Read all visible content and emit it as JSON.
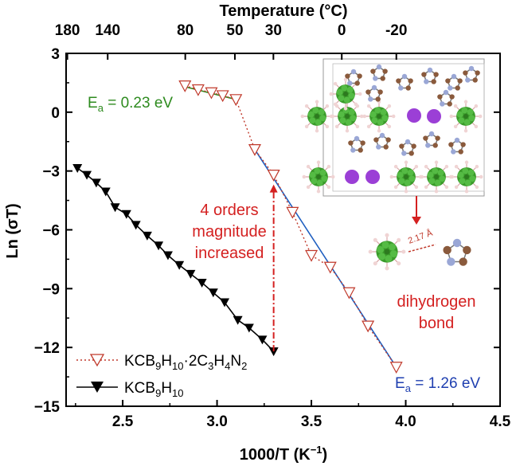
{
  "chart_data": {
    "type": "scatter",
    "xlabel": "1000/T (K",
    "xlabel_sup": "−1",
    "xlabel_close": ")",
    "ylabel": "Ln (σT)",
    "top_axis_label": "Temperature (°C)",
    "xlim": [
      2.2,
      4.5
    ],
    "ylim": [
      -15,
      3
    ],
    "xticks": [
      2.5,
      3.0,
      3.5,
      4.0,
      4.5
    ],
    "xtick_labels": [
      "2.5",
      "3.0",
      "3.5",
      "4.0",
      "4.5"
    ],
    "yticks": [
      3,
      0,
      -3,
      -6,
      -9,
      -12,
      -15
    ],
    "ytick_labels": [
      "3",
      "0",
      "−3",
      "−6",
      "−9",
      "−12",
      "−15"
    ],
    "top_ticks_celsius": [
      180,
      140,
      80,
      50,
      30,
      0,
      -20
    ],
    "top_tick_labels": [
      "180",
      "140",
      "80",
      "50",
      "30",
      "0",
      "-20"
    ],
    "series": [
      {
        "name": "KCB9H10·2C3H4N2",
        "color": "#c0392b",
        "marker": "triangle-down-open",
        "x": [
          2.83,
          2.9,
          2.97,
          3.03,
          3.1,
          3.2,
          3.3,
          3.4,
          3.5,
          3.6,
          3.7,
          3.8,
          3.95
        ],
        "y": [
          1.35,
          1.15,
          1.0,
          0.85,
          0.65,
          -1.9,
          -3.2,
          -5.1,
          -7.3,
          -7.9,
          -9.2,
          -10.9,
          -13.0
        ]
      },
      {
        "name": "KCB9H10",
        "color": "#000000",
        "marker": "triangle-down-filled",
        "x": [
          2.26,
          2.31,
          2.36,
          2.41,
          2.46,
          2.52,
          2.57,
          2.63,
          2.69,
          2.74,
          2.8,
          2.86,
          2.92,
          2.98,
          3.04,
          3.11,
          3.17,
          3.24,
          3.3
        ],
        "y": [
          -2.85,
          -3.2,
          -3.6,
          -4.05,
          -4.85,
          -5.2,
          -5.75,
          -6.3,
          -6.8,
          -7.3,
          -7.8,
          -8.25,
          -8.7,
          -9.2,
          -9.7,
          -10.6,
          -11.0,
          -11.6,
          -12.2
        ]
      }
    ],
    "fits": [
      {
        "label": "E",
        "sub": "a",
        "rest": " = 0.23 eV",
        "color": "#2e8b1f",
        "x": [
          2.83,
          3.1
        ],
        "y": [
          1.3,
          0.65
        ]
      },
      {
        "label": "E",
        "sub": "a",
        "rest": " = 1.26 eV",
        "color": "#1f5fc0",
        "x": [
          3.2,
          3.95
        ],
        "y": [
          -1.9,
          -13.0
        ]
      }
    ],
    "annotations": {
      "orders_lines": [
        "4 orders",
        "magnitude",
        "increased"
      ],
      "dihydrogen_lines": [
        "dihydrogen",
        "bond"
      ],
      "distance": "2.17 Å"
    },
    "legend": {
      "position": "bottom-left",
      "entries": [
        {
          "parts": [
            "KCB",
            "9",
            "H",
            "10",
            "·2C",
            "3",
            "H",
            "4",
            "N",
            "2"
          ]
        },
        {
          "parts": [
            "KCB",
            "9",
            "H",
            "10"
          ]
        }
      ]
    }
  }
}
